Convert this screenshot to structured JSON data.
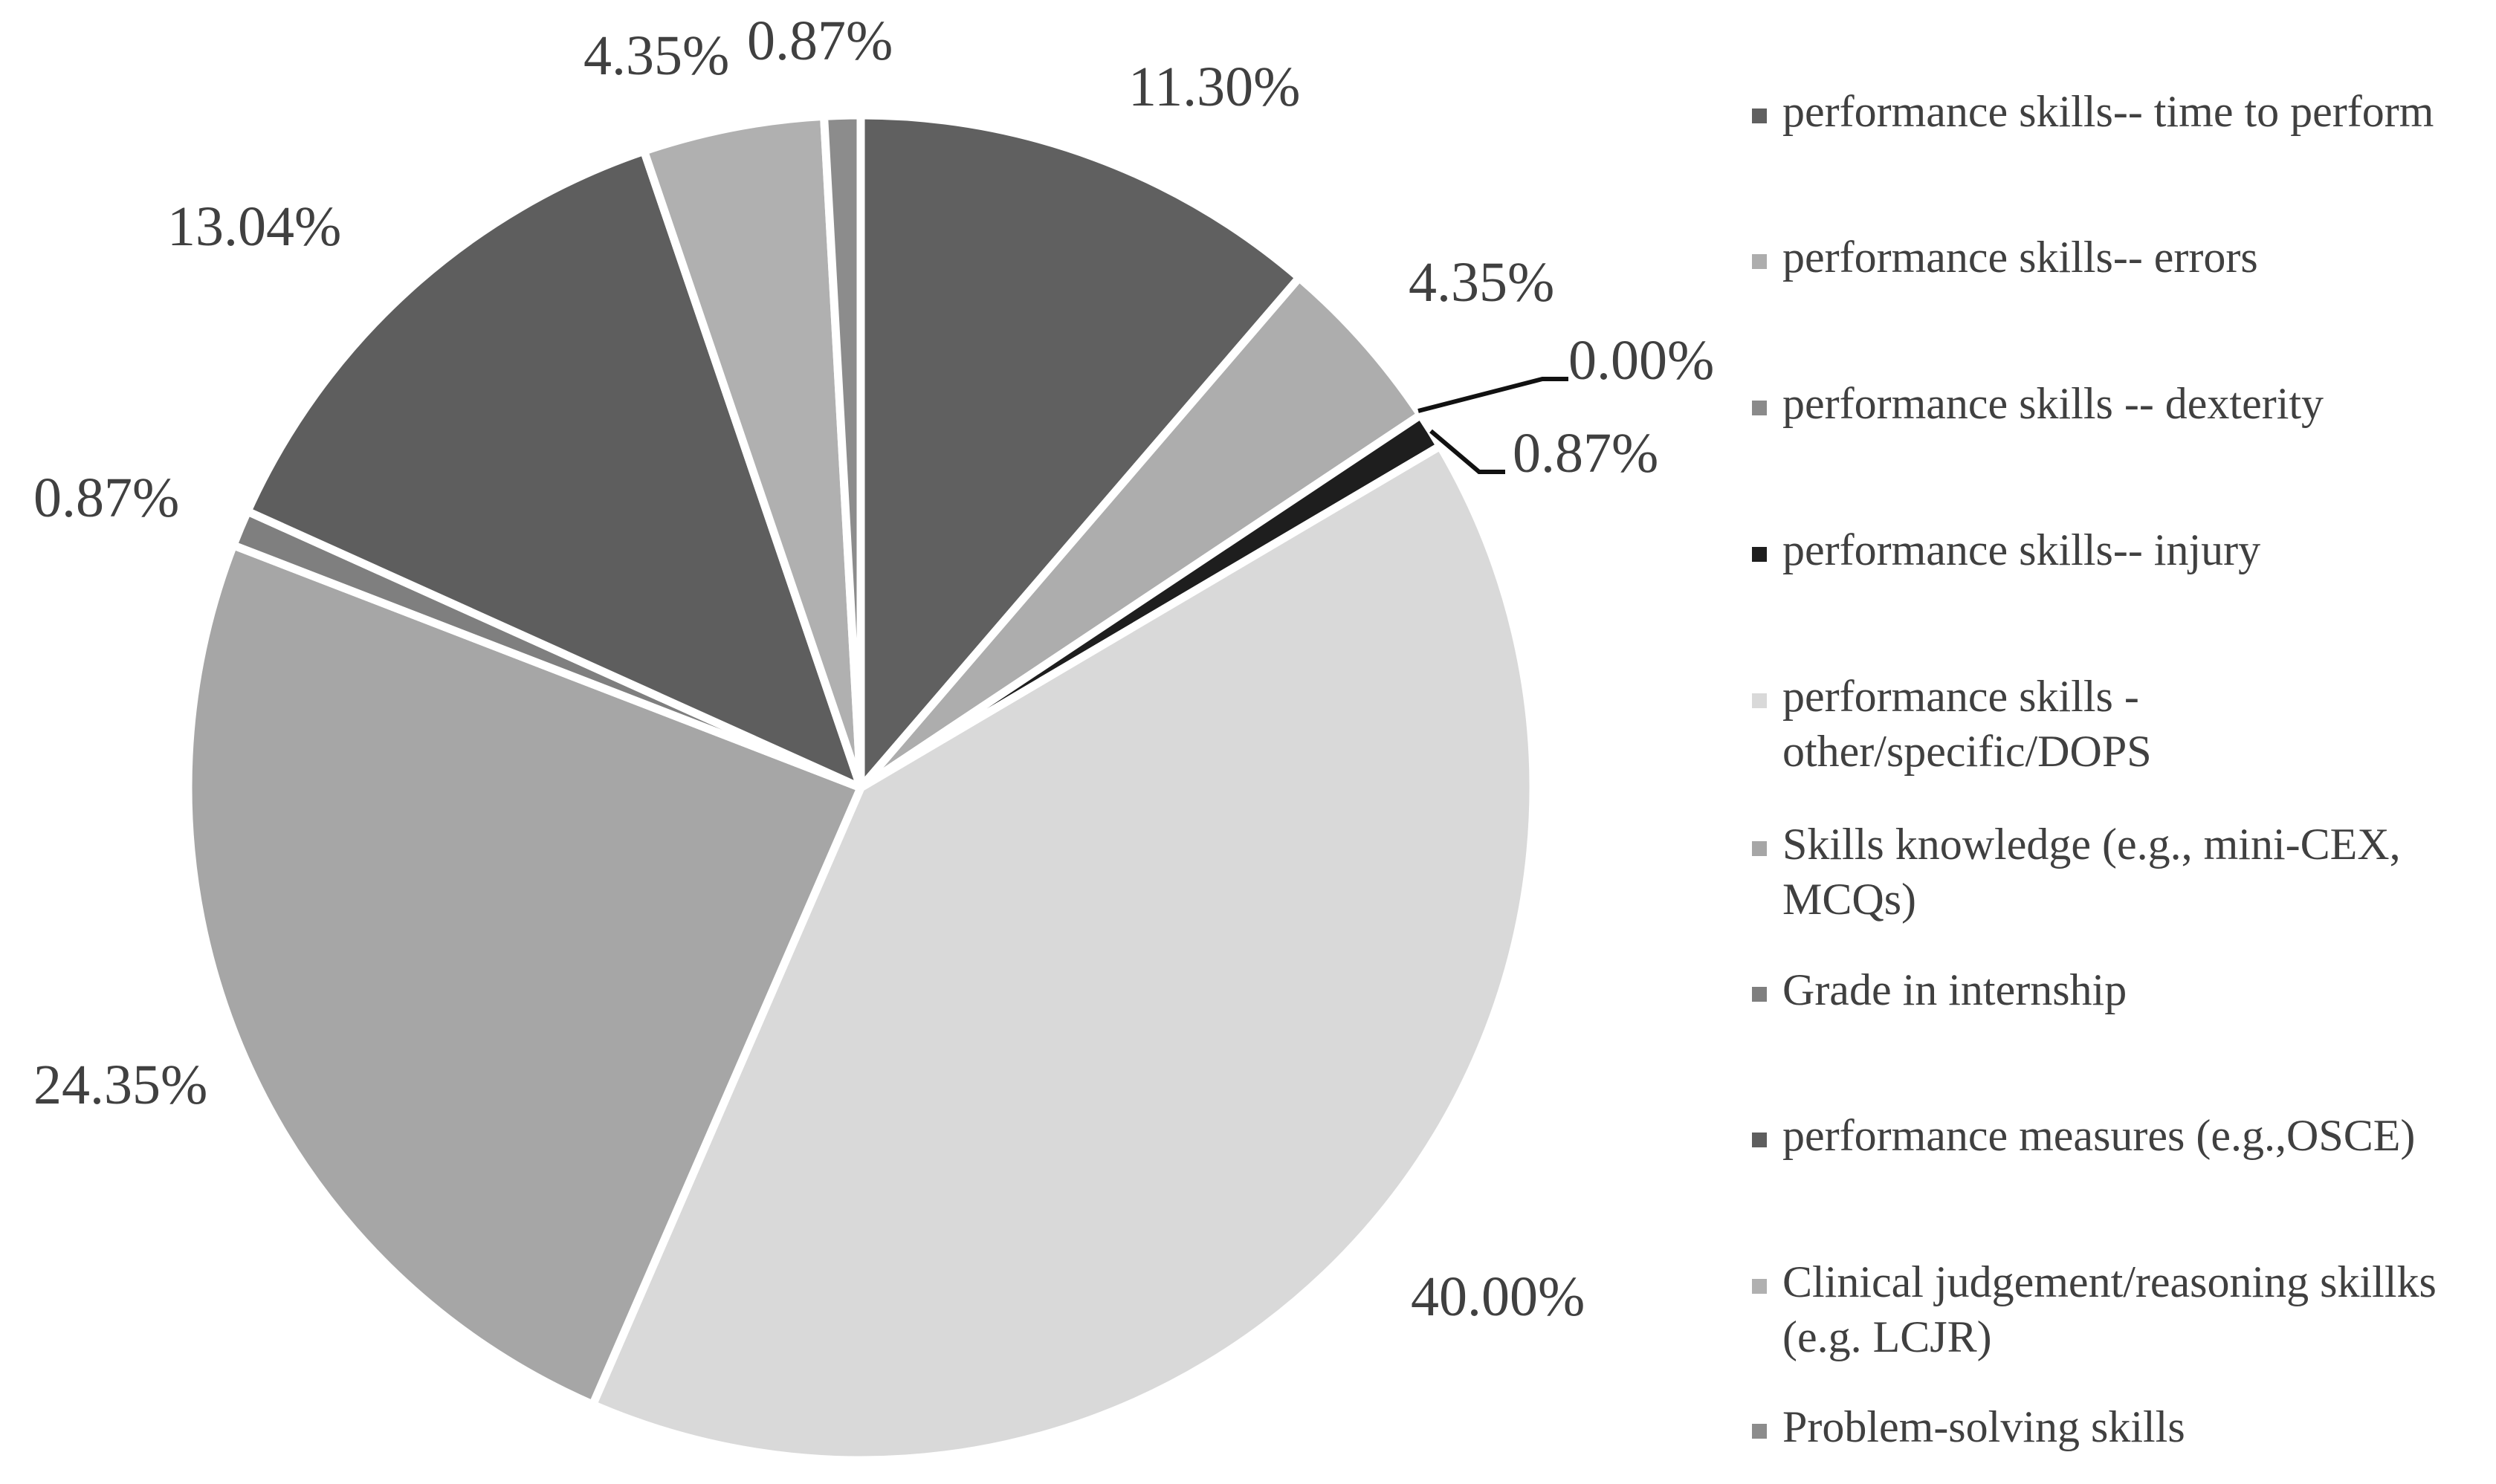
{
  "chart_data": {
    "type": "pie",
    "title": "",
    "start_angle_deg": 0,
    "direction": "clockwise",
    "labels_show": "percentage",
    "legend_position": "right",
    "slices": [
      {
        "legend": "performance skills-- time to perform",
        "value": 11.3,
        "label": "11.30%",
        "color": "#606060"
      },
      {
        "legend": "performance skills-- errors",
        "value": 4.35,
        "label": "4.35%",
        "color": "#adadad"
      },
      {
        "legend": "performance skills -- dexterity",
        "value": 0.0,
        "label": "0.00%",
        "color": "#8a8a8a"
      },
      {
        "legend": "performance skills-- injury",
        "value": 0.87,
        "label": "0.87%",
        "color": "#1e1e1e"
      },
      {
        "legend": "performance skills - other/specific/DOPS",
        "value": 40.0,
        "label": "40.00%",
        "color": "#d9d9d9"
      },
      {
        "legend": "Skills knowledge (e.g., mini-CEX, MCQs)",
        "value": 24.35,
        "label": "24.35%",
        "color": "#a6a6a6"
      },
      {
        "legend": "Grade in internship",
        "value": 0.87,
        "label": "0.87%",
        "color": "#7f7f7f"
      },
      {
        "legend": "performance measures (e.g.,OSCE)",
        "value": 13.04,
        "label": "13.04%",
        "color": "#5e5e5e"
      },
      {
        "legend": "Clinical judgement/reasoning skillks (e.g. LCJR)",
        "value": 4.35,
        "label": "4.35%",
        "color": "#b0b0b0"
      },
      {
        "legend": "Problem-solving skills",
        "value": 0.87,
        "label": "0.87%",
        "color": "#8c8c8c"
      }
    ]
  }
}
